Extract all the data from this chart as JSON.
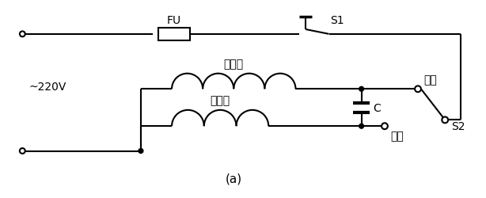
{
  "title": "(a)",
  "label_220v": "~220V",
  "label_FU": "FU",
  "label_S1": "S1",
  "label_S2": "S2",
  "label_main_winding": "主绕组",
  "label_aux_winding": "副绕组",
  "label_C": "C",
  "label_forward": "正转",
  "label_reverse": "反转",
  "bg_color": "#ffffff",
  "line_color": "#000000",
  "figsize": [
    6.14,
    2.51
  ],
  "dpi": 100
}
